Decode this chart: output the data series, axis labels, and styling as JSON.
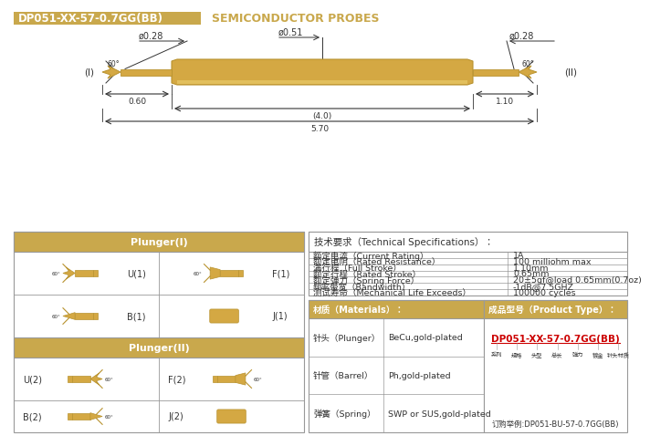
{
  "title_box_text": "DP051-XX-57-0.7GG(BB)",
  "title_box_color": "#C9A84C",
  "title_right_text": "SEMICONDUCTOR PROBES",
  "title_right_color": "#C9A84C",
  "bg_color": "#FFFFFF",
  "probe_gold": "#D4A843",
  "probe_gold_dark": "#B8922E",
  "dim_color": "#333333",
  "border_color": "#999999",
  "header_color": "#C9A84C",
  "specs": [
    [
      "额定电流（Current Rating）",
      "1A"
    ],
    [
      "额定电阴（Rated Resistance）",
      "100 milliohm max"
    ],
    [
      "满行程（Full Stroke）",
      "1.10mm"
    ],
    [
      "额定行程（Rated Stroke）",
      "0.65mm"
    ],
    [
      "额定弹力（Spring Force）",
      "20±5gf@load 0.65mm(0.7oz)"
    ],
    [
      "频率带宽（Bandwidth）",
      "-1dB@7.5GHZ"
    ],
    [
      "测试寿命（Mechanical Life Exceeds）",
      "100000 cycles"
    ]
  ],
  "materials": [
    [
      "针头（Plunger）",
      "BeCu,gold-plated"
    ],
    [
      "针管（Barrel）",
      "Ph,gold-plated"
    ],
    [
      "弹簧（Spring）",
      "SWP or SUS,gold-plated"
    ]
  ],
  "product_type_text": "DP051-XX-57-0.7GG(BB)",
  "product_labels": [
    "系列",
    "规格",
    "头型",
    "总长",
    "弹力",
    "镀金",
    "针头材质"
  ],
  "product_order": "订购举例:DP051-BU-57-0.7GG(BB)"
}
